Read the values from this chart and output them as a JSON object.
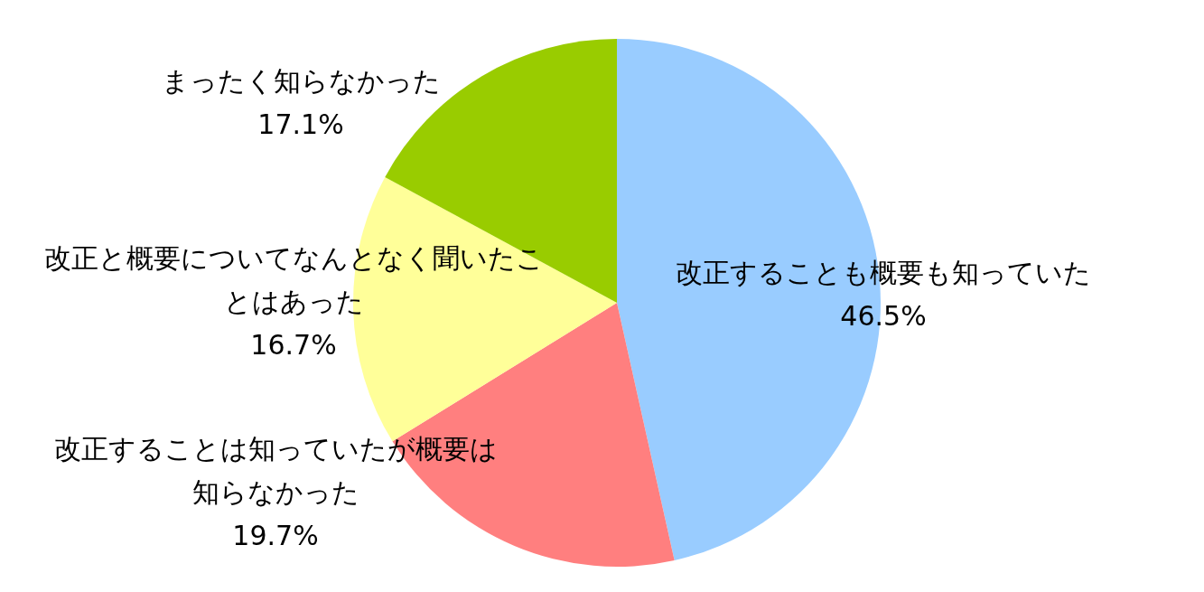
{
  "chart_data": {
    "type": "pie",
    "categories": [
      "改正することも概要も知っていた",
      "改正することは知っていたが概要は知らなかった",
      "改正と概要についてなんとなく聞いたことはあった",
      "まったく知らなかった"
    ],
    "values": [
      46.5,
      19.7,
      16.7,
      17.1
    ],
    "value_labels": [
      "46.5%",
      "19.7%",
      "16.7%",
      "17.1%"
    ],
    "colors": [
      "#99ccff",
      "#ff7f7f",
      "#ffff99",
      "#99cc00"
    ],
    "legend": false
  }
}
